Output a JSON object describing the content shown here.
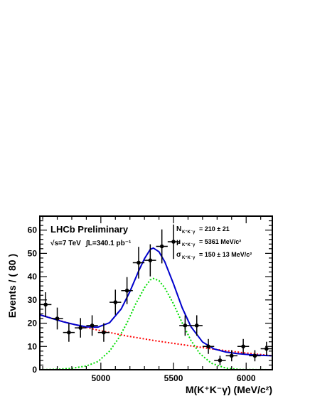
{
  "chart_data": {
    "type": "scatter",
    "title": "",
    "xlabel": "M(K⁺K⁻γ) (MeV/c²)",
    "ylabel": "Events / ( 80 )",
    "xlim": [
      4580,
      6180
    ],
    "ylim": [
      0,
      66
    ],
    "xticks": [
      5000,
      5500,
      6000
    ],
    "yticks": [
      0,
      10,
      20,
      30,
      40,
      50,
      60
    ],
    "grid": false,
    "legend": "none",
    "annotations": {
      "experiment": "LHCb Preliminary",
      "energy": "√s=7 TeV",
      "luminosity": "∫L=340.1 pb⁻¹",
      "n_label": "N",
      "n_sub": "K⁺K⁻γ",
      "n_value": "= 210 ± 21",
      "mu_label": "μ",
      "mu_sub": "K⁺K⁻γ",
      "mu_value": "= 5361 MeV/c²",
      "sigma_label": "σ",
      "sigma_sub": "K⁺K⁻γ",
      "sigma_value": "= 150 ± 13 MeV/c²"
    },
    "series": [
      {
        "kind": "points",
        "color": "#000000",
        "x": [
          4620,
          4700,
          4780,
          4860,
          4940,
          5020,
          5100,
          5180,
          5260,
          5340,
          5420,
          5500,
          5580,
          5660,
          5740,
          5820,
          5900,
          5980,
          6060,
          6140
        ],
        "y": [
          28,
          22,
          16,
          18,
          19,
          16,
          29,
          34,
          46,
          47,
          53,
          55,
          19,
          19,
          10,
          4,
          6,
          10,
          6,
          9
        ],
        "yerr": [
          5.3,
          4.7,
          4.0,
          4.2,
          4.4,
          4.0,
          5.4,
          5.8,
          6.8,
          6.9,
          7.3,
          7.4,
          4.4,
          4.4,
          3.2,
          2.0,
          2.4,
          3.2,
          2.4,
          3.0
        ],
        "xerr": 40
      },
      {
        "kind": "curve",
        "color": "#0000cc",
        "x": [
          4580,
          4660,
          4740,
          4820,
          4900,
          4980,
          5060,
          5140,
          5200,
          5260,
          5300,
          5340,
          5361,
          5400,
          5440,
          5500,
          5560,
          5620,
          5700,
          5780,
          5860,
          5940,
          6020,
          6100,
          6180
        ],
        "y": [
          23.6,
          22.1,
          20.6,
          19.4,
          18.4,
          18.3,
          20.2,
          26.1,
          33.6,
          42.4,
          47.7,
          51.7,
          52.3,
          50.7,
          46.4,
          36.9,
          26.6,
          18.5,
          11.9,
          8.9,
          7.6,
          6.9,
          6.5,
          6.2,
          6.0
        ]
      },
      {
        "kind": "curve",
        "color": "#ff0000",
        "style": "dotted",
        "x": [
          4580,
          4780,
          4980,
          5180,
          5380,
          5580,
          5780,
          5980,
          6180
        ],
        "y": [
          23.6,
          20.0,
          17.0,
          14.5,
          12.4,
          10.6,
          8.8,
          7.3,
          6.0
        ]
      },
      {
        "kind": "curve",
        "color": "#00dd00",
        "style": "dotted",
        "x": [
          4580,
          4700,
          4800,
          4900,
          4980,
          5060,
          5120,
          5180,
          5240,
          5300,
          5340,
          5361,
          5400,
          5440,
          5500,
          5560,
          5620,
          5680,
          5760,
          5860,
          5960,
          6180
        ],
        "y": [
          0,
          0.2,
          0.6,
          1.6,
          3.5,
          8.0,
          13.3,
          20.1,
          28.3,
          35.2,
          38.6,
          39.2,
          38.3,
          35.2,
          28.3,
          20.1,
          12.6,
          7.0,
          2.8,
          0.7,
          0.1,
          0
        ]
      }
    ]
  }
}
